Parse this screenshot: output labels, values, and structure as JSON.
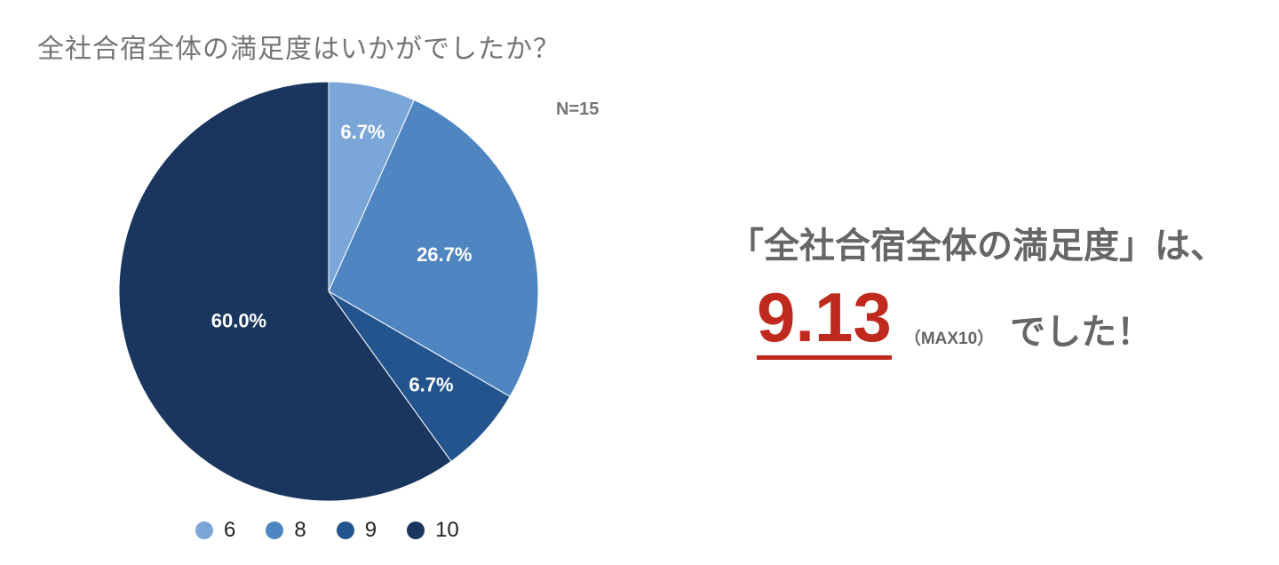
{
  "title": "全社合宿全体の満足度はいかがでしたか？",
  "sample_size": "N=15",
  "chart_data": {
    "type": "pie",
    "categories": [
      "6",
      "8",
      "9",
      "10"
    ],
    "values": [
      6.7,
      26.7,
      6.7,
      60.0
    ],
    "value_labels": [
      "6.7%",
      "26.7%",
      "6.7%",
      "60.0%"
    ],
    "colors": [
      "#7aa6d8",
      "#4f86c2",
      "#24548e",
      "#1a365e"
    ],
    "legend_position": "bottom"
  },
  "summary": {
    "line1": "「全社合宿全体の満足度」は、",
    "score": "9.13",
    "max_note": "（MAX10）",
    "tail": "でした！"
  }
}
